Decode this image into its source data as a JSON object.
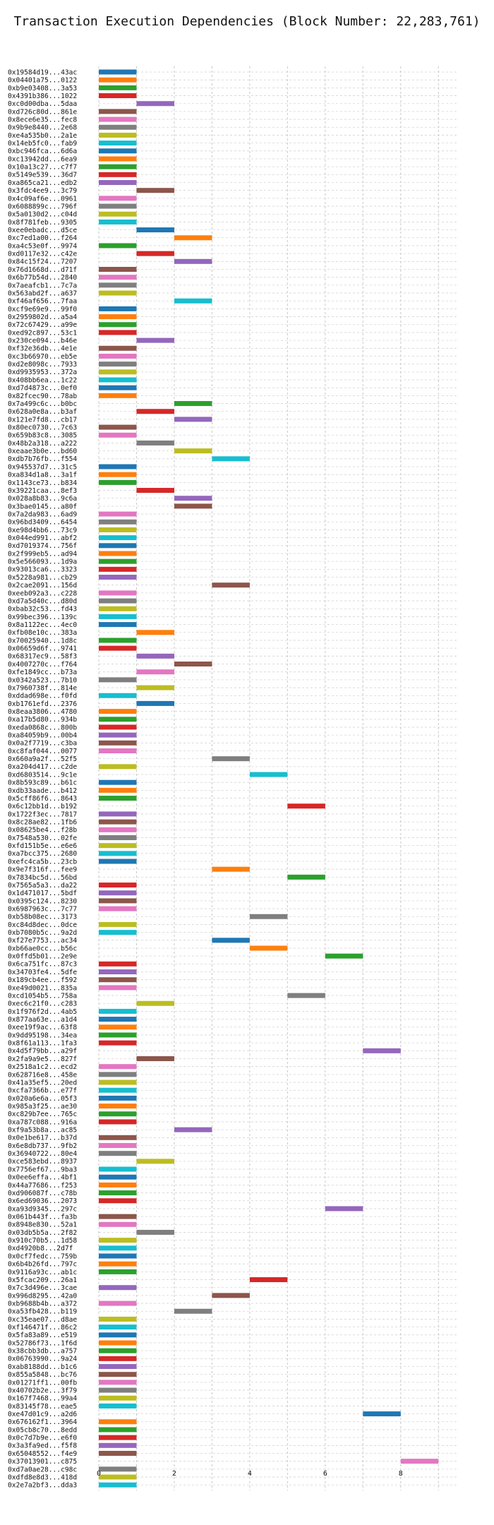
{
  "chart_data": {
    "type": "bar",
    "orientation": "horizontal",
    "title": "Transaction Execution Dependencies (Block Number: 22,283,761)",
    "xlabel": "",
    "ylabel": "",
    "xlim": [
      0,
      9.5
    ],
    "xticks": [
      0,
      2,
      4,
      6,
      8
    ],
    "grid": true,
    "colors": [
      "#1f77b4",
      "#ff7f0e",
      "#2ca02c",
      "#d62728",
      "#9467bd",
      "#8c564b",
      "#e377c2",
      "#7f7f7f",
      "#bcbd22",
      "#17becf"
    ],
    "bars": [
      {
        "label": "0x19584d19...43ac",
        "start": 0,
        "end": 1
      },
      {
        "label": "0x04401a75...0122",
        "start": 0,
        "end": 1
      },
      {
        "label": "0xb9e03408...3a53",
        "start": 0,
        "end": 1
      },
      {
        "label": "0x4391b386...1022",
        "start": 0,
        "end": 1
      },
      {
        "label": "0xc0d00dba...5daa",
        "start": 1,
        "end": 2
      },
      {
        "label": "0xd726c80d...861e",
        "start": 0,
        "end": 1
      },
      {
        "label": "0x8ece6e35...fec8",
        "start": 0,
        "end": 1
      },
      {
        "label": "0x9b9e8440...2e68",
        "start": 0,
        "end": 1
      },
      {
        "label": "0xe4a535b0...2a1e",
        "start": 0,
        "end": 1
      },
      {
        "label": "0x14eb5fc0...fab9",
        "start": 0,
        "end": 1
      },
      {
        "label": "0xbc946fca...6d6a",
        "start": 0,
        "end": 1
      },
      {
        "label": "0xc13942dd...6ea9",
        "start": 0,
        "end": 1
      },
      {
        "label": "0x10a13c27...c7f7",
        "start": 0,
        "end": 1
      },
      {
        "label": "0x5149e539...36d7",
        "start": 0,
        "end": 1
      },
      {
        "label": "0xa865ca21...edb2",
        "start": 0,
        "end": 1
      },
      {
        "label": "0x3fdc4ee9...3c79",
        "start": 1,
        "end": 2
      },
      {
        "label": "0x4c09af6e...0961",
        "start": 0,
        "end": 1
      },
      {
        "label": "0x6088899c...796f",
        "start": 0,
        "end": 1
      },
      {
        "label": "0x5a0130d2...c04d",
        "start": 0,
        "end": 1
      },
      {
        "label": "0x8f781feb...9305",
        "start": 0,
        "end": 1
      },
      {
        "label": "0xee0ebadc...d5ce",
        "start": 1,
        "end": 2
      },
      {
        "label": "0xc7ed1a00...f264",
        "start": 2,
        "end": 3
      },
      {
        "label": "0xa4c53e0f...9974",
        "start": 0,
        "end": 1
      },
      {
        "label": "0xd0117e32...c42e",
        "start": 1,
        "end": 2
      },
      {
        "label": "0x84c15f24...7207",
        "start": 2,
        "end": 3
      },
      {
        "label": "0x76d1668d...d71f",
        "start": 0,
        "end": 1
      },
      {
        "label": "0x6b77b54d...2840",
        "start": 0,
        "end": 1
      },
      {
        "label": "0x7aeafcb1...7c7a",
        "start": 0,
        "end": 1
      },
      {
        "label": "0x563abd2f...a637",
        "start": 0,
        "end": 1
      },
      {
        "label": "0xf46af656...7faa",
        "start": 2,
        "end": 3
      },
      {
        "label": "0xcf9e69e9...99f0",
        "start": 0,
        "end": 1
      },
      {
        "label": "0x2959802d...a5a4",
        "start": 0,
        "end": 1
      },
      {
        "label": "0x72c67429...a99e",
        "start": 0,
        "end": 1
      },
      {
        "label": "0xed92c897...53c1",
        "start": 0,
        "end": 1
      },
      {
        "label": "0x230ce094...b46e",
        "start": 1,
        "end": 2
      },
      {
        "label": "0xf32e36db...4e1e",
        "start": 0,
        "end": 1
      },
      {
        "label": "0xc3b66970...eb5e",
        "start": 0,
        "end": 1
      },
      {
        "label": "0xd2e8098c...7933",
        "start": 0,
        "end": 1
      },
      {
        "label": "0xd9935953...372a",
        "start": 0,
        "end": 1
      },
      {
        "label": "0x408bb6ea...1c22",
        "start": 0,
        "end": 1
      },
      {
        "label": "0xd7d4873c...0ef0",
        "start": 0,
        "end": 1
      },
      {
        "label": "0x82fcec90...78ab",
        "start": 0,
        "end": 1
      },
      {
        "label": "0x7a499c6c...b0bc",
        "start": 2,
        "end": 3
      },
      {
        "label": "0x628a0e8a...b3af",
        "start": 1,
        "end": 2
      },
      {
        "label": "0x121e7fd8...cb17",
        "start": 2,
        "end": 3
      },
      {
        "label": "0x80ec0730...7c63",
        "start": 0,
        "end": 1
      },
      {
        "label": "0x659b83c8...3085",
        "start": 0,
        "end": 1
      },
      {
        "label": "0x48b2a318...a222",
        "start": 1,
        "end": 2
      },
      {
        "label": "0xeaae3b0e...bd60",
        "start": 2,
        "end": 3
      },
      {
        "label": "0xdb7b76fb...f554",
        "start": 3,
        "end": 4
      },
      {
        "label": "0x945537d7...31c5",
        "start": 0,
        "end": 1
      },
      {
        "label": "0xa834d1a8...3a1f",
        "start": 0,
        "end": 1
      },
      {
        "label": "0x1143ce73...b834",
        "start": 0,
        "end": 1
      },
      {
        "label": "0x39221caa...8ef3",
        "start": 1,
        "end": 2
      },
      {
        "label": "0x028a8b83...9c6a",
        "start": 2,
        "end": 3
      },
      {
        "label": "0x3bae0145...a80f",
        "start": 2,
        "end": 3
      },
      {
        "label": "0x7a2da983...6ad9",
        "start": 0,
        "end": 1
      },
      {
        "label": "0x96bd3409...6454",
        "start": 0,
        "end": 1
      },
      {
        "label": "0xe98d4bb6...73c9",
        "start": 0,
        "end": 1
      },
      {
        "label": "0x044ed991...abf2",
        "start": 0,
        "end": 1
      },
      {
        "label": "0xd7019374...756f",
        "start": 0,
        "end": 1
      },
      {
        "label": "0x2f999eb5...ad94",
        "start": 0,
        "end": 1
      },
      {
        "label": "0x5e566093...1d9a",
        "start": 0,
        "end": 1
      },
      {
        "label": "0x93013ca6...3323",
        "start": 0,
        "end": 1
      },
      {
        "label": "0x5228a981...cb29",
        "start": 0,
        "end": 1
      },
      {
        "label": "0x2cae2091...156d",
        "start": 3,
        "end": 4
      },
      {
        "label": "0xeeb092a3...c228",
        "start": 0,
        "end": 1
      },
      {
        "label": "0xd7a5d40c...d80d",
        "start": 0,
        "end": 1
      },
      {
        "label": "0xbab32c53...fd43",
        "start": 0,
        "end": 1
      },
      {
        "label": "0x99bec396...139c",
        "start": 0,
        "end": 1
      },
      {
        "label": "0x8a1122ec...4ec0",
        "start": 0,
        "end": 1
      },
      {
        "label": "0xfb08e10c...383a",
        "start": 1,
        "end": 2
      },
      {
        "label": "0x70025940...1d8c",
        "start": 0,
        "end": 1
      },
      {
        "label": "0x06659d6f...9741",
        "start": 0,
        "end": 1
      },
      {
        "label": "0x68317ec9...58f3",
        "start": 1,
        "end": 2
      },
      {
        "label": "0x4007270c...f764",
        "start": 2,
        "end": 3
      },
      {
        "label": "0xfe1849cc...b73a",
        "start": 1,
        "end": 2
      },
      {
        "label": "0x0342a523...7b10",
        "start": 0,
        "end": 1
      },
      {
        "label": "0x7960738f...814e",
        "start": 1,
        "end": 2
      },
      {
        "label": "0xddad698e...f0fd",
        "start": 0,
        "end": 1
      },
      {
        "label": "0xb1761efd...2376",
        "start": 1,
        "end": 2
      },
      {
        "label": "0x8eaa3806...4780",
        "start": 0,
        "end": 1
      },
      {
        "label": "0xa17b5d80...934b",
        "start": 0,
        "end": 1
      },
      {
        "label": "0xeda0868c...800b",
        "start": 0,
        "end": 1
      },
      {
        "label": "0xa84059b9...00b4",
        "start": 0,
        "end": 1
      },
      {
        "label": "0x0a2f7719...c3ba",
        "start": 0,
        "end": 1
      },
      {
        "label": "0xc8faf044...0077",
        "start": 0,
        "end": 1
      },
      {
        "label": "0x660a9a2f...52f5",
        "start": 3,
        "end": 4
      },
      {
        "label": "0xa204d417...c2de",
        "start": 0,
        "end": 1
      },
      {
        "label": "0xd6803514...9c1e",
        "start": 4,
        "end": 5
      },
      {
        "label": "0x8b593c89...b61c",
        "start": 0,
        "end": 1
      },
      {
        "label": "0xdb33aade...b412",
        "start": 0,
        "end": 1
      },
      {
        "label": "0x5cff86f6...8643",
        "start": 0,
        "end": 1
      },
      {
        "label": "0x6c12bb1d...b192",
        "start": 5,
        "end": 6
      },
      {
        "label": "0x1722f3ec...7817",
        "start": 0,
        "end": 1
      },
      {
        "label": "0x8c28ae82...1fb6",
        "start": 0,
        "end": 1
      },
      {
        "label": "0x08625be4...f28b",
        "start": 0,
        "end": 1
      },
      {
        "label": "0x7548a530...02fe",
        "start": 0,
        "end": 1
      },
      {
        "label": "0xfd151b5e...e6e6",
        "start": 0,
        "end": 1
      },
      {
        "label": "0xa7bcc375...2680",
        "start": 0,
        "end": 1
      },
      {
        "label": "0xefc4ca5b...23cb",
        "start": 0,
        "end": 1
      },
      {
        "label": "0x9e7f316f...fee9",
        "start": 3,
        "end": 4
      },
      {
        "label": "0x7834bc5d...56bd",
        "start": 5,
        "end": 6
      },
      {
        "label": "0x7565a5a3...da22",
        "start": 0,
        "end": 1
      },
      {
        "label": "0x1d471017...5bdf",
        "start": 0,
        "end": 1
      },
      {
        "label": "0x0395c124...8230",
        "start": 0,
        "end": 1
      },
      {
        "label": "0x6987963c...7c77",
        "start": 0,
        "end": 1
      },
      {
        "label": "0xb58b08ec...3173",
        "start": 4,
        "end": 5
      },
      {
        "label": "0xc84d8dec...0dce",
        "start": 0,
        "end": 1
      },
      {
        "label": "0xb7080b5c...9a2d",
        "start": 0,
        "end": 1
      },
      {
        "label": "0xf27e7753...ac34",
        "start": 3,
        "end": 4
      },
      {
        "label": "0xb66ae0cc...b56c",
        "start": 4,
        "end": 5
      },
      {
        "label": "0x0ffd5b01...2e9e",
        "start": 6,
        "end": 7
      },
      {
        "label": "0x6ca751fc...87c3",
        "start": 0,
        "end": 1
      },
      {
        "label": "0x34703fe4...5dfe",
        "start": 0,
        "end": 1
      },
      {
        "label": "0x189cb4ee...f592",
        "start": 0,
        "end": 1
      },
      {
        "label": "0xe49d0021...835a",
        "start": 0,
        "end": 1
      },
      {
        "label": "0xcd1054b5...758a",
        "start": 5,
        "end": 6
      },
      {
        "label": "0xec6c21f0...c283",
        "start": 1,
        "end": 2
      },
      {
        "label": "0x1f976f2d...4ab5",
        "start": 0,
        "end": 1
      },
      {
        "label": "0x877aa63e...a1d4",
        "start": 0,
        "end": 1
      },
      {
        "label": "0xee19f9ac...63f8",
        "start": 0,
        "end": 1
      },
      {
        "label": "0x9dd95198...34ea",
        "start": 0,
        "end": 1
      },
      {
        "label": "0x8f61a113...1fa3",
        "start": 0,
        "end": 1
      },
      {
        "label": "0x4d5f79bb...a29f",
        "start": 7,
        "end": 8
      },
      {
        "label": "0x2fa9a9e5...827f",
        "start": 1,
        "end": 2
      },
      {
        "label": "0x2518a1c2...ecd2",
        "start": 0,
        "end": 1
      },
      {
        "label": "0x628716e8...458e",
        "start": 0,
        "end": 1
      },
      {
        "label": "0x41a35ef5...20ed",
        "start": 0,
        "end": 1
      },
      {
        "label": "0xcfa7366b...e77f",
        "start": 0,
        "end": 1
      },
      {
        "label": "0x020a6e6a...05f3",
        "start": 0,
        "end": 1
      },
      {
        "label": "0x985a3f25...ae30",
        "start": 0,
        "end": 1
      },
      {
        "label": "0xc829b7ee...765c",
        "start": 0,
        "end": 1
      },
      {
        "label": "0xa787c088...916a",
        "start": 0,
        "end": 1
      },
      {
        "label": "0xf9a53b8a...ac85",
        "start": 2,
        "end": 3
      },
      {
        "label": "0x0e1be617...b37d",
        "start": 0,
        "end": 1
      },
      {
        "label": "0x6e8db737...9fb2",
        "start": 0,
        "end": 1
      },
      {
        "label": "0x36940722...80e4",
        "start": 0,
        "end": 1
      },
      {
        "label": "0xce583ebd...8937",
        "start": 1,
        "end": 2
      },
      {
        "label": "0x7756ef67...9ba3",
        "start": 0,
        "end": 1
      },
      {
        "label": "0x0ee6effa...4bf1",
        "start": 0,
        "end": 1
      },
      {
        "label": "0x44a77686...f253",
        "start": 0,
        "end": 1
      },
      {
        "label": "0xd906087f...c78b",
        "start": 0,
        "end": 1
      },
      {
        "label": "0x6ed69036...2073",
        "start": 0,
        "end": 1
      },
      {
        "label": "0xa93d9345...297c",
        "start": 6,
        "end": 7
      },
      {
        "label": "0x061b443f...fa3b",
        "start": 0,
        "end": 1
      },
      {
        "label": "0x8948e830...52a1",
        "start": 0,
        "end": 1
      },
      {
        "label": "0x03db5b5a...2f82",
        "start": 1,
        "end": 2
      },
      {
        "label": "0x910c70b5...1d58",
        "start": 0,
        "end": 1
      },
      {
        "label": "0xd4920b8...2d7f",
        "start": 0,
        "end": 1
      },
      {
        "label": "0x0cf7fedc...759b",
        "start": 0,
        "end": 1
      },
      {
        "label": "0x6b4b26fd...797c",
        "start": 0,
        "end": 1
      },
      {
        "label": "0x9116a93c...ab1c",
        "start": 0,
        "end": 1
      },
      {
        "label": "0x5fcac209...26a1",
        "start": 4,
        "end": 5
      },
      {
        "label": "0x7c3d496e...3cae",
        "start": 0,
        "end": 1
      },
      {
        "label": "0x996d8295...42a0",
        "start": 3,
        "end": 4
      },
      {
        "label": "0xb9688b4b...a372",
        "start": 0,
        "end": 1
      },
      {
        "label": "0xa53fb428...b119",
        "start": 2,
        "end": 3
      },
      {
        "label": "0xc35eae07...d8ae",
        "start": 0,
        "end": 1
      },
      {
        "label": "0xf146471f...86c2",
        "start": 0,
        "end": 1
      },
      {
        "label": "0x5fa83a89...e519",
        "start": 0,
        "end": 1
      },
      {
        "label": "0x52786f73...1f6d",
        "start": 0,
        "end": 1
      },
      {
        "label": "0x38cbb3db...a757",
        "start": 0,
        "end": 1
      },
      {
        "label": "0x06763990...9a24",
        "start": 0,
        "end": 1
      },
      {
        "label": "0xab8188dd...b1c6",
        "start": 0,
        "end": 1
      },
      {
        "label": "0x855a5848...bc76",
        "start": 0,
        "end": 1
      },
      {
        "label": "0x01271ff1...00fb",
        "start": 0,
        "end": 1
      },
      {
        "label": "0x40702b2e...3f79",
        "start": 0,
        "end": 1
      },
      {
        "label": "0x167f7468...99a4",
        "start": 0,
        "end": 1
      },
      {
        "label": "0x83145f78...eae5",
        "start": 0,
        "end": 1
      },
      {
        "label": "0xe47d01c9...a2d6",
        "start": 7,
        "end": 8
      },
      {
        "label": "0x676162f1...3964",
        "start": 0,
        "end": 1
      },
      {
        "label": "0x05cb8c70...8edd",
        "start": 0,
        "end": 1
      },
      {
        "label": "0x0c7d7b9e...e6f0",
        "start": 0,
        "end": 1
      },
      {
        "label": "0x3a3fa9ed...f5f8",
        "start": 0,
        "end": 1
      },
      {
        "label": "0x65048552...f4e9",
        "start": 0,
        "end": 1
      },
      {
        "label": "0x37013901...c875",
        "start": 8,
        "end": 9
      },
      {
        "label": "0xd7a0ae28...c98c",
        "start": 0,
        "end": 1
      },
      {
        "label": "0xdfd8e8d3...418d",
        "start": 0,
        "end": 1
      },
      {
        "label": "0x2e7a2bf3...dda3",
        "start": 0,
        "end": 1
      }
    ]
  }
}
